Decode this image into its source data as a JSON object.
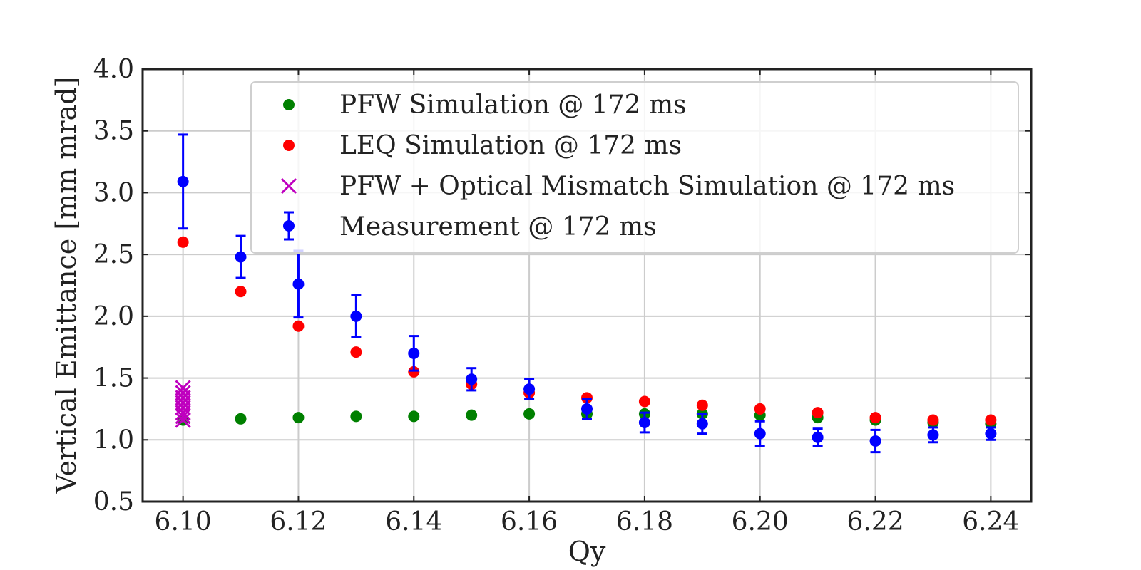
{
  "chart_data": {
    "type": "scatter",
    "xlabel": "Qy",
    "ylabel": "Vertical Emittance [mm mrad]",
    "xlim": [
      6.093,
      6.247
    ],
    "ylim": [
      0.5,
      4.0
    ],
    "xticks": [
      6.1,
      6.12,
      6.14,
      6.16,
      6.18,
      6.2,
      6.22,
      6.24
    ],
    "xtick_labels": [
      "6.10",
      "6.12",
      "6.14",
      "6.16",
      "6.18",
      "6.20",
      "6.22",
      "6.24"
    ],
    "yticks": [
      0.5,
      1.0,
      1.5,
      2.0,
      2.5,
      3.0,
      3.5,
      4.0
    ],
    "ytick_labels": [
      "0.5",
      "1.0",
      "1.5",
      "2.0",
      "2.5",
      "3.0",
      "3.5",
      "4.0"
    ],
    "grid": true,
    "legend_position": "top-right",
    "colors": {
      "pfw": "#008000",
      "leq": "#ff0000",
      "mismatch": "#bf00bf",
      "measurement": "#0000ff",
      "grid": "#cccccc",
      "axes": "#222222"
    },
    "series": [
      {
        "name": "PFW Simulation @ 172 ms",
        "marker": "circle",
        "color": "#008000",
        "x": [
          6.1,
          6.11,
          6.12,
          6.13,
          6.14,
          6.15,
          6.16,
          6.17,
          6.18,
          6.19,
          6.2,
          6.21,
          6.22,
          6.23,
          6.24
        ],
        "y": [
          1.16,
          1.17,
          1.18,
          1.19,
          1.19,
          1.2,
          1.21,
          1.21,
          1.21,
          1.21,
          1.2,
          1.18,
          1.16,
          1.14,
          1.13
        ]
      },
      {
        "name": "LEQ Simulation @ 172 ms",
        "marker": "circle",
        "color": "#ff0000",
        "x": [
          6.1,
          6.11,
          6.12,
          6.13,
          6.14,
          6.15,
          6.16,
          6.17,
          6.18,
          6.19,
          6.2,
          6.21,
          6.22,
          6.23,
          6.24
        ],
        "y": [
          2.6,
          2.2,
          1.92,
          1.71,
          1.55,
          1.45,
          1.38,
          1.34,
          1.31,
          1.28,
          1.25,
          1.22,
          1.18,
          1.16,
          1.16
        ]
      },
      {
        "name": "PFW + Optical Mismatch Simulation @ 172 ms",
        "marker": "x",
        "color": "#bf00bf",
        "x": [
          6.1,
          6.1,
          6.1,
          6.1,
          6.1,
          6.1,
          6.1,
          6.1
        ],
        "y": [
          1.16,
          1.19,
          1.22,
          1.26,
          1.3,
          1.34,
          1.38,
          1.42
        ]
      },
      {
        "name": "Measurement @ 172 ms",
        "marker": "circle-errorbar",
        "color": "#0000ff",
        "x": [
          6.1,
          6.11,
          6.12,
          6.13,
          6.14,
          6.15,
          6.16,
          6.17,
          6.18,
          6.19,
          6.2,
          6.21,
          6.22,
          6.23,
          6.24
        ],
        "y": [
          3.09,
          2.48,
          2.26,
          2.0,
          1.7,
          1.49,
          1.41,
          1.25,
          1.14,
          1.13,
          1.05,
          1.02,
          0.99,
          1.04,
          1.05
        ],
        "yerr": [
          0.38,
          0.17,
          0.27,
          0.17,
          0.14,
          0.09,
          0.08,
          0.08,
          0.08,
          0.08,
          0.1,
          0.07,
          0.09,
          0.06,
          0.05
        ]
      }
    ]
  }
}
